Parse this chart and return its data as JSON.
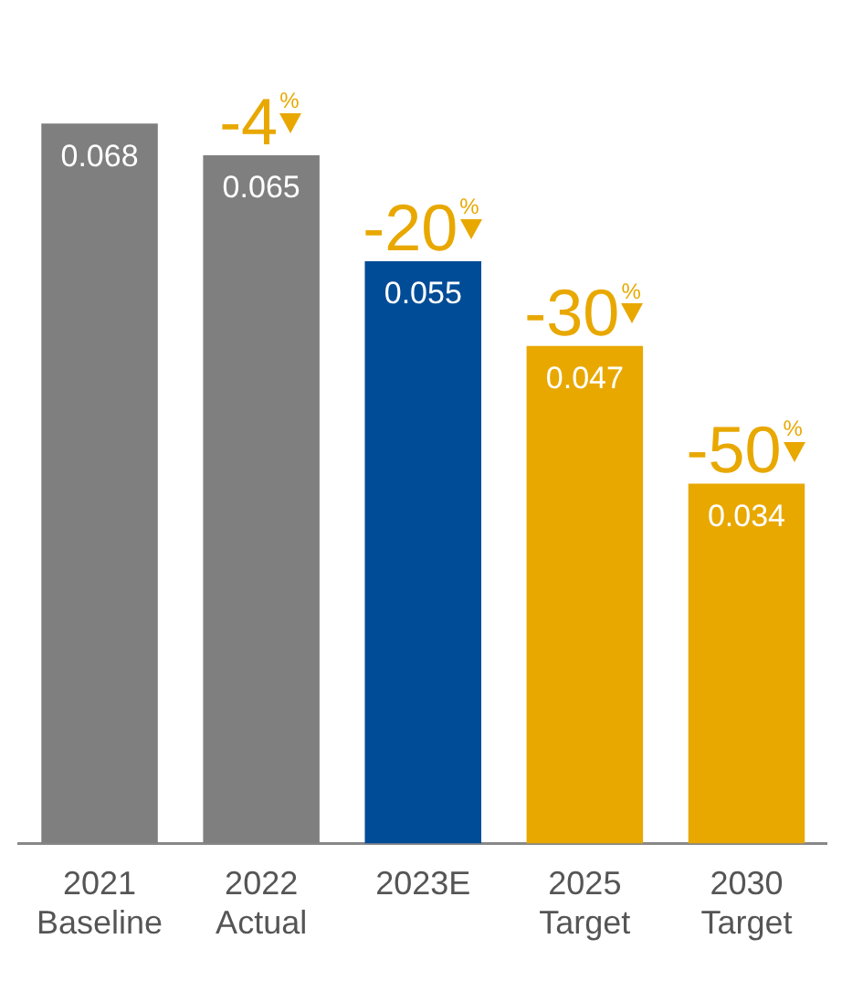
{
  "chart_data": {
    "type": "bar",
    "categories": [
      "2021\nBaseline",
      "2022\nActual",
      "2023E",
      "2025\nTarget",
      "2030\nTarget"
    ],
    "values": [
      0.068,
      0.065,
      0.055,
      0.047,
      0.034
    ],
    "colors": [
      "#7f7f7f",
      "#7f7f7f",
      "#004c97",
      "#e8a800",
      "#e8a800"
    ],
    "data_labels": true,
    "tick_labels": "x",
    "grid": false,
    "legend": false,
    "annotations": [
      {
        "text": "-4%",
        "x": "2022\nActual",
        "y": 0.065
      },
      {
        "text": "-20%",
        "x": "2023E",
        "y": 0.055
      },
      {
        "text": "-30%",
        "x": "2025\nTarget",
        "y": 0.047
      },
      {
        "text": "-50%",
        "x": "2030\nTarget",
        "y": 0.034
      }
    ]
  }
}
